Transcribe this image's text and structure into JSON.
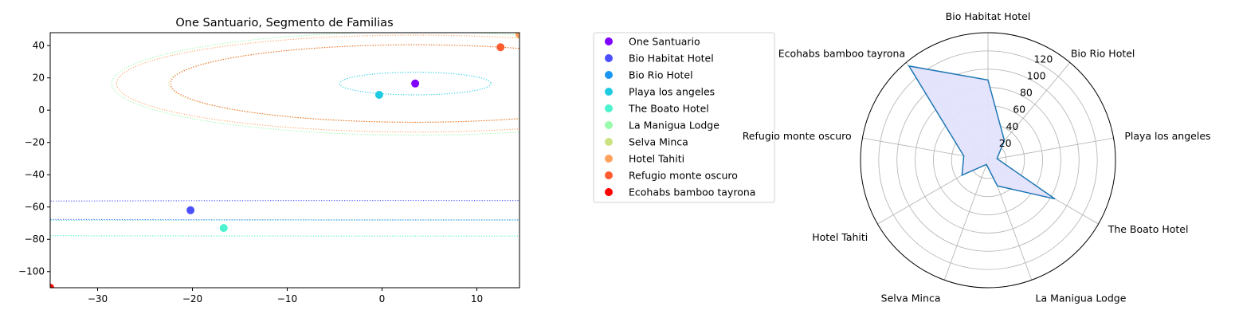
{
  "chart_data": [
    {
      "type": "scatter",
      "title": "One Santuario, Segmento de Familias",
      "xlabel": "",
      "ylabel": "",
      "xlim": [
        -35,
        14.5
      ],
      "ylim": [
        -110,
        48
      ],
      "xticks": [
        -30,
        -20,
        -10,
        0,
        10
      ],
      "yticks": [
        -100,
        -80,
        -60,
        -40,
        -20,
        0,
        20,
        40
      ],
      "grid": false,
      "series": [
        {
          "name": "One Santuario",
          "color": "#7f00ff",
          "x": 3.5,
          "y": 16.5,
          "orbit": null
        },
        {
          "name": "Bio Habitat Hotel",
          "color": "#4c50fc",
          "x": -20.2,
          "y": -62,
          "orbit": {
            "cx": 3.5,
            "cy": -62,
            "rx": 120,
            "ry": 6
          }
        },
        {
          "name": "Bio Rio Hotel",
          "color": "#1996f3",
          "x": 14.5,
          "y": 47,
          "orbit": null
        },
        {
          "name": "Playa los angeles",
          "color": "#1ecbe2",
          "x": -0.3,
          "y": 9.5,
          "orbit": {
            "cx": 3.5,
            "cy": 16.5,
            "rx": 8,
            "ry": 7
          }
        },
        {
          "name": "The Boato Hotel",
          "color": "#4df3ce",
          "x": -16.7,
          "y": -73,
          "orbit": {
            "cx": 3.5,
            "cy": -73,
            "rx": 120,
            "ry": 5
          }
        },
        {
          "name": "La Manigua Lodge",
          "color": "#99fcaa",
          "x": 14.5,
          "y": 47,
          "orbit": {
            "cx": 3.5,
            "cy": 16.5,
            "rx": 32,
            "ry": 32
          }
        },
        {
          "name": "Selva Minca",
          "color": "#cbe283",
          "x": 14.5,
          "y": 47,
          "orbit": {
            "cx": 3.5,
            "cy": 16.5,
            "rx": 26,
            "ry": 24
          }
        },
        {
          "name": "Hotel Tahiti",
          "color": "#ffa25f",
          "x": 14.5,
          "y": 47,
          "orbit": {
            "cx": 3.5,
            "cy": 16.5,
            "rx": 31.5,
            "ry": 30
          }
        },
        {
          "name": "Refugio monte oscuro",
          "color": "#ff5b30",
          "x": 12.5,
          "y": 39,
          "orbit": {
            "cx": 3.5,
            "cy": 16.5,
            "rx": 25.8,
            "ry": 24
          }
        },
        {
          "name": "Ecohabs bamboo tayrona",
          "color": "#ff0000",
          "x": -35,
          "y": -110,
          "orbit": null
        }
      ],
      "legend_position": "right"
    },
    {
      "type": "radar",
      "categories": [
        "Bio Habitat Hotel",
        "Bio Rio Hotel",
        "Playa los angeles",
        "The Boato Hotel",
        "La Manigua Lodge",
        "Selva Minca",
        "Hotel Tahiti",
        "Refugio monte oscuro",
        "Ecohabs bamboo tayrona"
      ],
      "values": [
        88,
        28,
        10,
        85,
        30,
        5,
        33,
        27,
        135
      ],
      "rlim": [
        0,
        140
      ],
      "rticks": [
        20,
        40,
        60,
        80,
        100,
        120
      ],
      "line_color": "#1f77b4",
      "fill_color": "#e3e3fc"
    }
  ]
}
